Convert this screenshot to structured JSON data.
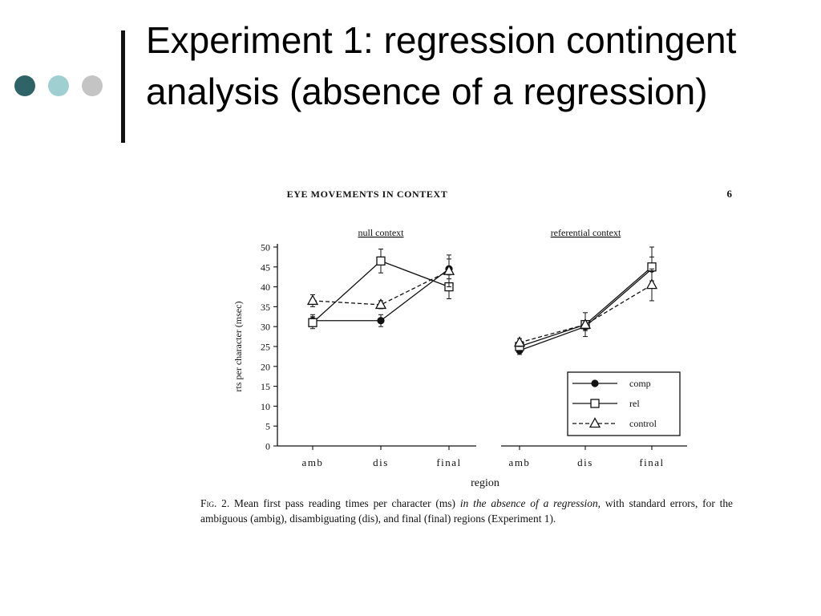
{
  "slide": {
    "title": "Experiment 1: regression contingent analysis (absence of a regression)",
    "bullet_colors": [
      "#2e6468",
      "#9fcfd1",
      "#c4c4c4"
    ]
  },
  "figure": {
    "running_head": "EYE MOVEMENTS IN CONTEXT",
    "page_number": "6",
    "caption": {
      "lead": "Fig. 2.",
      "part1": " Mean first pass reading times per character (ms) ",
      "emphasis": "in the absence of a regression,",
      "part2": " with standard errors, for the ambiguous (ambig), disambiguating (dis), and final (final) regions (Experiment 1)."
    }
  },
  "chart_data": [
    {
      "type": "line",
      "title": "null context",
      "categories": [
        "amb",
        "dis",
        "final"
      ],
      "xlabel": "region",
      "ylabel": "rts per character (msec)",
      "ylim": [
        0,
        50
      ],
      "yticks": [
        0,
        5,
        10,
        15,
        20,
        25,
        30,
        35,
        40,
        45,
        50
      ],
      "grid": false,
      "series": [
        {
          "name": "comp",
          "marker": "filled-circle",
          "dash": "solid",
          "values": [
            31.5,
            31.5,
            44.5
          ],
          "errors": [
            1.5,
            1.5,
            2.5
          ]
        },
        {
          "name": "rel",
          "marker": "open-square",
          "dash": "solid",
          "values": [
            31,
            46.5,
            40
          ],
          "errors": [
            1.5,
            3,
            3
          ]
        },
        {
          "name": "control",
          "marker": "open-triangle",
          "dash": "dashed",
          "values": [
            36.5,
            35.5,
            44
          ],
          "errors": [
            1.5,
            1,
            4
          ]
        }
      ]
    },
    {
      "type": "line",
      "title": "referential context",
      "categories": [
        "amb",
        "dis",
        "final"
      ],
      "ylim": [
        0,
        50
      ],
      "grid": false,
      "legend": "bottom-right",
      "series": [
        {
          "name": "comp",
          "marker": "filled-circle",
          "dash": "solid",
          "values": [
            24,
            30,
            44.5
          ],
          "errors": [
            1,
            1,
            3
          ]
        },
        {
          "name": "rel",
          "marker": "open-square",
          "dash": "solid",
          "values": [
            25,
            30.5,
            45
          ],
          "errors": [
            1,
            1,
            5
          ]
        },
        {
          "name": "control",
          "marker": "open-triangle",
          "dash": "dashed",
          "values": [
            26,
            30.5,
            40.5
          ],
          "errors": [
            1,
            3,
            4
          ]
        }
      ]
    }
  ]
}
